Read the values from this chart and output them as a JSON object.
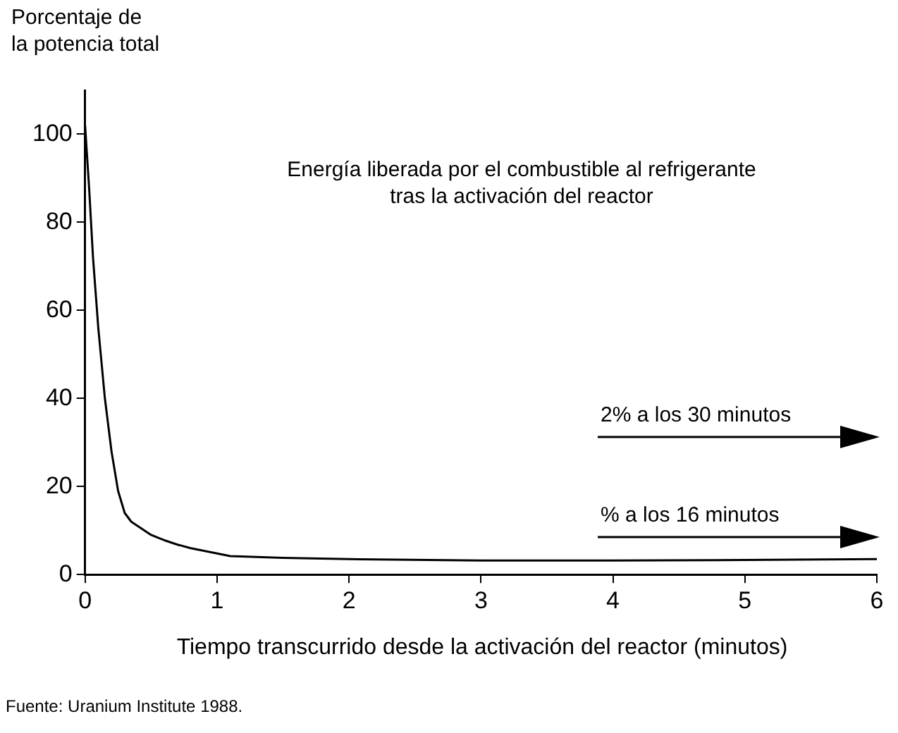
{
  "chart_data": {
    "type": "line",
    "title": "Energía liberada por el combustible al refrigerante\ntras la activación del reactor",
    "xlabel": "Tiempo transcurrido desde la activación del reactor (minutos)",
    "ylabel": "Porcentaje de\nla potencia total",
    "x": [
      0,
      0.03,
      0.06,
      0.1,
      0.15,
      0.2,
      0.25,
      0.3,
      0.35,
      0.4,
      0.5,
      0.6,
      0.7,
      0.8,
      1,
      1.1,
      1.5,
      2,
      3,
      4,
      5,
      6
    ],
    "series": [
      {
        "color": "#000000",
        "values": [
          102,
          88,
          72,
          56,
          40,
          28,
          19,
          14,
          12,
          11,
          9,
          7.8,
          6.8,
          6,
          4.8,
          4.2,
          3.8,
          3.5,
          3.2,
          3.2,
          3.3,
          3.5
        ]
      }
    ],
    "xlim": [
      0,
      6
    ],
    "xticks": [
      0,
      1,
      2,
      3,
      4,
      5,
      6
    ],
    "ylim": [
      0,
      110
    ],
    "yticks": [
      0,
      20,
      40,
      60,
      80,
      100
    ],
    "grid": false,
    "legend": false,
    "marker": "none",
    "line_style": "solid",
    "annotations": [
      "2% a los 30 minutos",
      "% a los 16 minutos",
      "Fuente: Uranium Institute 1988."
    ]
  }
}
